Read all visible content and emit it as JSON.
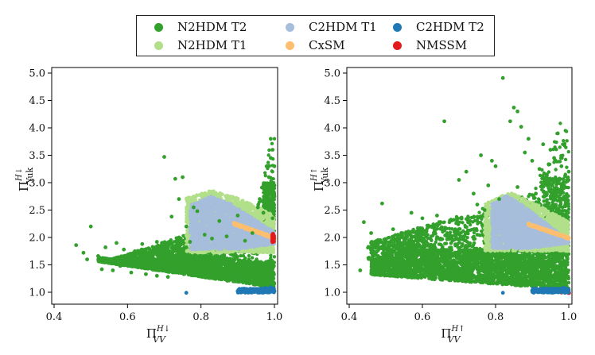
{
  "colors": {
    "N2HDM_T2": "#33a02c",
    "N2HDM_T1": "#b2df8a",
    "C2HDM_T1": "#a6bddb",
    "CxSM": "#fdbf6f",
    "C2HDM_T2": "#1f78b4",
    "NMSSM": "#e31a1c"
  },
  "legend": [
    {
      "key": "N2HDM_T2",
      "label": "N2HDM T2"
    },
    {
      "key": "C2HDM_T1",
      "label": "C2HDM T1"
    },
    {
      "key": "C2HDM_T2",
      "label": "C2HDM T2"
    },
    {
      "key": "N2HDM_T1",
      "label": "N2HDM T1"
    },
    {
      "key": "CxSM",
      "label": "CxSM"
    },
    {
      "key": "NMSSM",
      "label": "NMSSM"
    }
  ],
  "chart_data": [
    {
      "type": "scatter",
      "panel": "left",
      "xlabel_main": "Π",
      "xlabel_sub": "VV",
      "xlabel_sup": "H↓",
      "ylabel_main": "Π",
      "ylabel_sub": "Yuk",
      "ylabel_sup": "H↓",
      "xlim": [
        0.4,
        1.0
      ],
      "ylim": [
        1.0,
        5.0
      ],
      "xticks": [
        "0.4",
        "0.6",
        "0.8",
        "1.0"
      ],
      "yticks": [
        "1.0",
        "1.5",
        "2.0",
        "2.5",
        "3.0",
        "3.5",
        "4.0",
        "4.5",
        "5.0"
      ],
      "series": [
        {
          "key": "N2HDM_T2",
          "name": "N2HDM T2",
          "points": [
            [
              0.46,
              1.86
            ],
            [
              0.48,
              1.72
            ],
            [
              0.49,
              1.6
            ],
            [
              0.5,
              2.2
            ],
            [
              0.52,
              1.66
            ],
            [
              0.55,
              1.55
            ],
            [
              0.57,
              1.9
            ],
            [
              0.58,
              1.48
            ],
            [
              0.6,
              1.52
            ],
            [
              0.62,
              1.75
            ],
            [
              0.64,
              1.88
            ],
            [
              0.66,
              1.62
            ],
            [
              0.68,
              1.92
            ],
            [
              0.7,
              3.47
            ],
            [
              0.7,
              1.8
            ],
            [
              0.72,
              2.38
            ],
            [
              0.73,
              3.07
            ],
            [
              0.74,
              2.7
            ],
            [
              0.75,
              3.1
            ],
            [
              0.76,
              2.2
            ],
            [
              0.78,
              2.55
            ],
            [
              0.79,
              2.48
            ],
            [
              0.85,
              2.3
            ],
            [
              0.9,
              2.4
            ],
            [
              0.96,
              2.7
            ],
            [
              0.98,
              2.6
            ],
            [
              0.99,
              3.45
            ],
            [
              0.99,
              3.8
            ],
            [
              1.0,
              3.3
            ],
            [
              1.0,
              2.95
            ],
            [
              0.985,
              3.1
            ],
            [
              0.975,
              2.9
            ],
            [
              0.995,
              3.6
            ],
            [
              0.97,
              2.45
            ],
            [
              0.955,
              2.55
            ],
            [
              0.995,
              2.35
            ],
            [
              1.0,
              2.75
            ],
            [
              0.99,
              2.65
            ],
            [
              0.985,
              2.5
            ],
            [
              0.995,
              2.85
            ],
            [
              0.53,
              1.42
            ],
            [
              0.56,
              1.4
            ],
            [
              0.61,
              1.36
            ],
            [
              0.65,
              1.33
            ],
            [
              0.68,
              1.3
            ],
            [
              0.71,
              1.28
            ],
            [
              0.67,
              1.62
            ],
            [
              0.63,
              1.7
            ],
            [
              0.59,
              1.78
            ],
            [
              0.54,
              1.82
            ],
            [
              0.74,
              2.0
            ],
            [
              0.77,
              1.92
            ],
            [
              0.81,
              2.05
            ],
            [
              0.83,
              1.98
            ],
            [
              0.87,
              2.02
            ],
            [
              0.92,
              1.94
            ],
            [
              0.94,
              2.08
            ],
            [
              0.69,
              1.7
            ],
            [
              0.72,
              1.74
            ],
            [
              0.76,
              1.82
            ]
          ]
        },
        {
          "key": "C2HDM_T2",
          "name": "C2HDM T2",
          "points": [
            [
              0.76,
              0.99
            ],
            [
              0.9,
              1.02
            ],
            [
              0.92,
              1.05
            ],
            [
              0.93,
              1.03
            ],
            [
              0.94,
              1.01
            ],
            [
              0.95,
              1.06
            ],
            [
              0.96,
              1.02
            ],
            [
              0.97,
              1.04
            ],
            [
              0.98,
              1.0
            ],
            [
              0.99,
              1.03
            ],
            [
              0.995,
              1.07
            ],
            [
              0.985,
              1.01
            ],
            [
              0.975,
              1.08
            ],
            [
              0.965,
              1.0
            ],
            [
              0.955,
              1.04
            ],
            [
              0.945,
              1.03
            ],
            [
              0.935,
              1.06
            ],
            [
              0.99,
              1.09
            ],
            [
              1.0,
              1.02
            ],
            [
              0.915,
              1.04
            ]
          ]
        },
        {
          "key": "NMSSM",
          "name": "NMSSM",
          "points": [
            [
              0.995,
              1.92
            ],
            [
              0.995,
              1.95
            ],
            [
              0.995,
              1.98
            ],
            [
              0.995,
              2.01
            ],
            [
              0.995,
              2.04
            ],
            [
              0.998,
              1.93
            ],
            [
              0.998,
              1.97
            ],
            [
              0.998,
              2.0
            ],
            [
              0.998,
              2.03
            ],
            [
              0.996,
              2.06
            ]
          ]
        }
      ]
    },
    {
      "type": "scatter",
      "panel": "right",
      "xlabel_main": "Π",
      "xlabel_sub": "VV",
      "xlabel_sup": "H↑",
      "ylabel_main": "Π",
      "ylabel_sub": "Yuk",
      "ylabel_sup": "H↑",
      "xlim": [
        0.4,
        1.0
      ],
      "ylim": [
        1.0,
        5.0
      ],
      "xticks": [
        "0.4",
        "0.6",
        "0.8",
        "1.0"
      ],
      "yticks": [
        "1.0",
        "1.5",
        "2.0",
        "2.5",
        "3.0",
        "3.5",
        "4.0",
        "4.5",
        "5.0"
      ],
      "series": [
        {
          "key": "N2HDM_T2",
          "name": "N2HDM T2",
          "points": [
            [
              0.43,
              1.4
            ],
            [
              0.44,
              2.28
            ],
            [
              0.46,
              2.08
            ],
            [
              0.48,
              1.65
            ],
            [
              0.49,
              2.62
            ],
            [
              0.52,
              1.85
            ],
            [
              0.55,
              1.92
            ],
            [
              0.57,
              2.45
            ],
            [
              0.6,
              2.35
            ],
            [
              0.62,
              2.2
            ],
            [
              0.64,
              2.4
            ],
            [
              0.66,
              4.12
            ],
            [
              0.7,
              3.05
            ],
            [
              0.72,
              3.2
            ],
            [
              0.74,
              2.8
            ],
            [
              0.75,
              2.6
            ],
            [
              0.76,
              3.5
            ],
            [
              0.78,
              2.95
            ],
            [
              0.79,
              3.4
            ],
            [
              0.8,
              3.3
            ],
            [
              0.82,
              4.91
            ],
            [
              0.84,
              4.12
            ],
            [
              0.85,
              4.37
            ],
            [
              0.86,
              4.3
            ],
            [
              0.87,
              4.02
            ],
            [
              0.88,
              3.55
            ],
            [
              0.89,
              3.8
            ],
            [
              0.9,
              3.4
            ],
            [
              0.92,
              3.25
            ],
            [
              0.93,
              3.7
            ],
            [
              0.94,
              3.15
            ],
            [
              0.95,
              3.6
            ],
            [
              0.96,
              3.45
            ],
            [
              0.97,
              3.9
            ],
            [
              0.98,
              3.3
            ],
            [
              0.99,
              3.12
            ],
            [
              1.0,
              3.2
            ],
            [
              0.985,
              2.95
            ],
            [
              0.995,
              3.05
            ],
            [
              0.965,
              2.85
            ],
            [
              0.5,
              1.78
            ],
            [
              0.53,
              1.7
            ],
            [
              0.56,
              1.6
            ],
            [
              0.59,
              1.55
            ],
            [
              0.63,
              1.5
            ],
            [
              0.67,
              1.45
            ],
            [
              0.71,
              1.42
            ],
            [
              0.58,
              2.02
            ],
            [
              0.61,
              2.1
            ],
            [
              0.69,
              2.15
            ],
            [
              0.73,
              2.3
            ],
            [
              0.77,
              2.5
            ],
            [
              0.81,
              2.7
            ],
            [
              0.86,
              2.92
            ],
            [
              0.91,
              2.8
            ],
            [
              0.95,
              2.75
            ],
            [
              0.47,
              1.92
            ],
            [
              0.52,
              2.15
            ],
            [
              0.65,
              1.98
            ],
            [
              0.75,
              2.05
            ]
          ]
        },
        {
          "key": "C2HDM_T2",
          "name": "C2HDM T2",
          "points": [
            [
              0.82,
              0.99
            ],
            [
              0.9,
              1.03
            ],
            [
              0.92,
              1.05
            ],
            [
              0.93,
              1.02
            ],
            [
              0.94,
              1.06
            ],
            [
              0.95,
              1.01
            ],
            [
              0.96,
              1.04
            ],
            [
              0.97,
              1.0
            ],
            [
              0.98,
              1.03
            ],
            [
              0.99,
              1.07
            ],
            [
              0.995,
              1.02
            ],
            [
              0.985,
              1.08
            ],
            [
              0.975,
              1.01
            ],
            [
              0.965,
              1.05
            ],
            [
              0.955,
              1.03
            ],
            [
              0.945,
              1.0
            ],
            [
              0.91,
              1.04
            ],
            [
              0.99,
              0.99
            ],
            [
              1.0,
              1.04
            ],
            [
              0.935,
              1.07
            ]
          ]
        },
        {
          "key": "NMSSM",
          "name": "NMSSM",
          "points": [
            [
              0.98,
              1.0
            ],
            [
              0.99,
              1.01
            ],
            [
              1.0,
              0.99
            ]
          ]
        }
      ]
    }
  ]
}
